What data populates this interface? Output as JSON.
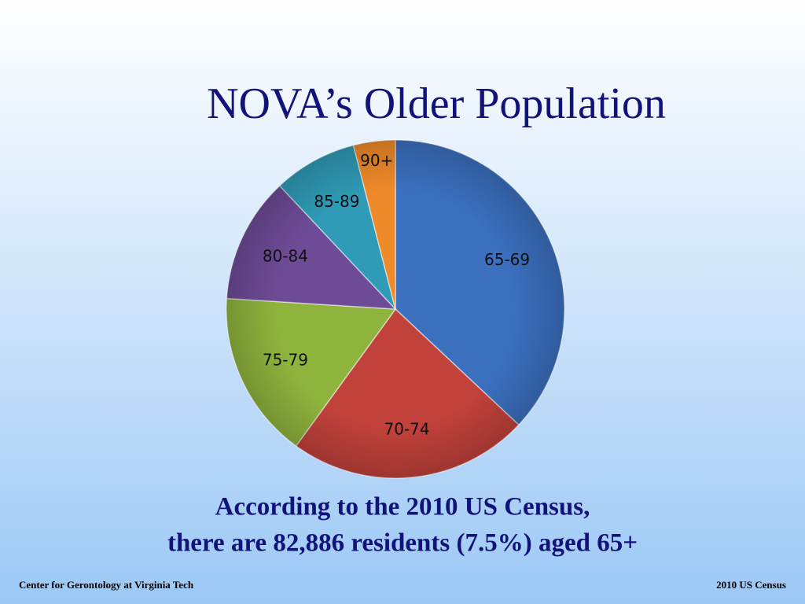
{
  "chart_data": {
    "type": "pie",
    "title": "NOVA’s Older Population",
    "categories": [
      "65-69",
      "70-74",
      "75-79",
      "80-84",
      "85-89",
      "90+"
    ],
    "values": [
      37,
      23,
      16,
      12,
      8,
      4
    ],
    "colors": [
      "#3b70bf",
      "#c1413b",
      "#8fb43d",
      "#6e4b97",
      "#2f9bb6",
      "#ef8a2a"
    ]
  },
  "caption": [
    "According to the 2010 US Census,",
    "there are 82,886 residents (7.5%) aged 65+"
  ],
  "footer": {
    "left": "Center for Gerontology at Virginia Tech",
    "right": "2010 US Census"
  }
}
